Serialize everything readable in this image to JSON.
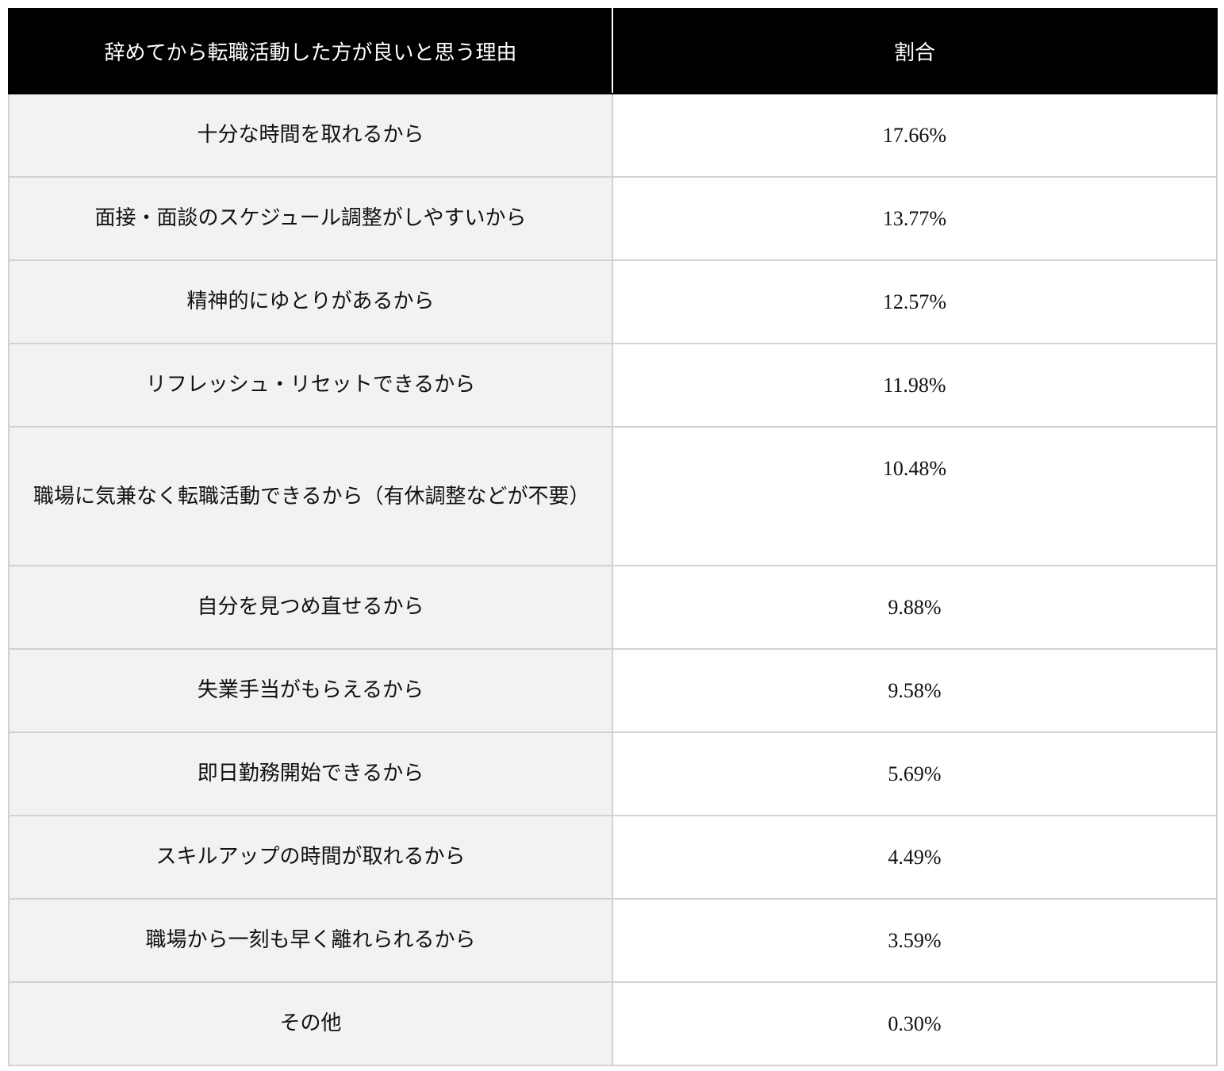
{
  "table": {
    "headers": {
      "reason": "辞めてから転職活動した方が良いと思う理由",
      "ratio": "割合"
    },
    "rows": [
      {
        "reason": "十分な時間を取れるから",
        "ratio": "17.66%"
      },
      {
        "reason": "面接・面談のスケジュール調整がしやすいから",
        "ratio": "13.77%"
      },
      {
        "reason": "精神的にゆとりがあるから",
        "ratio": "12.57%"
      },
      {
        "reason": "リフレッシュ・リセットできるから",
        "ratio": "11.98%"
      },
      {
        "reason": "職場に気兼なく転職活動できるから（有休調整などが不要）",
        "ratio": "10.48%"
      },
      {
        "reason": "自分を見つめ直せるから",
        "ratio": "9.88%"
      },
      {
        "reason": "失業手当がもらえるから",
        "ratio": "9.58%"
      },
      {
        "reason": "即日勤務開始できるから",
        "ratio": "5.69%"
      },
      {
        "reason": "スキルアップの時間が取れるから",
        "ratio": "4.49%"
      },
      {
        "reason": "職場から一刻も早く離れられるから",
        "ratio": "3.59%"
      },
      {
        "reason": "その他",
        "ratio": "0.30%"
      }
    ]
  }
}
